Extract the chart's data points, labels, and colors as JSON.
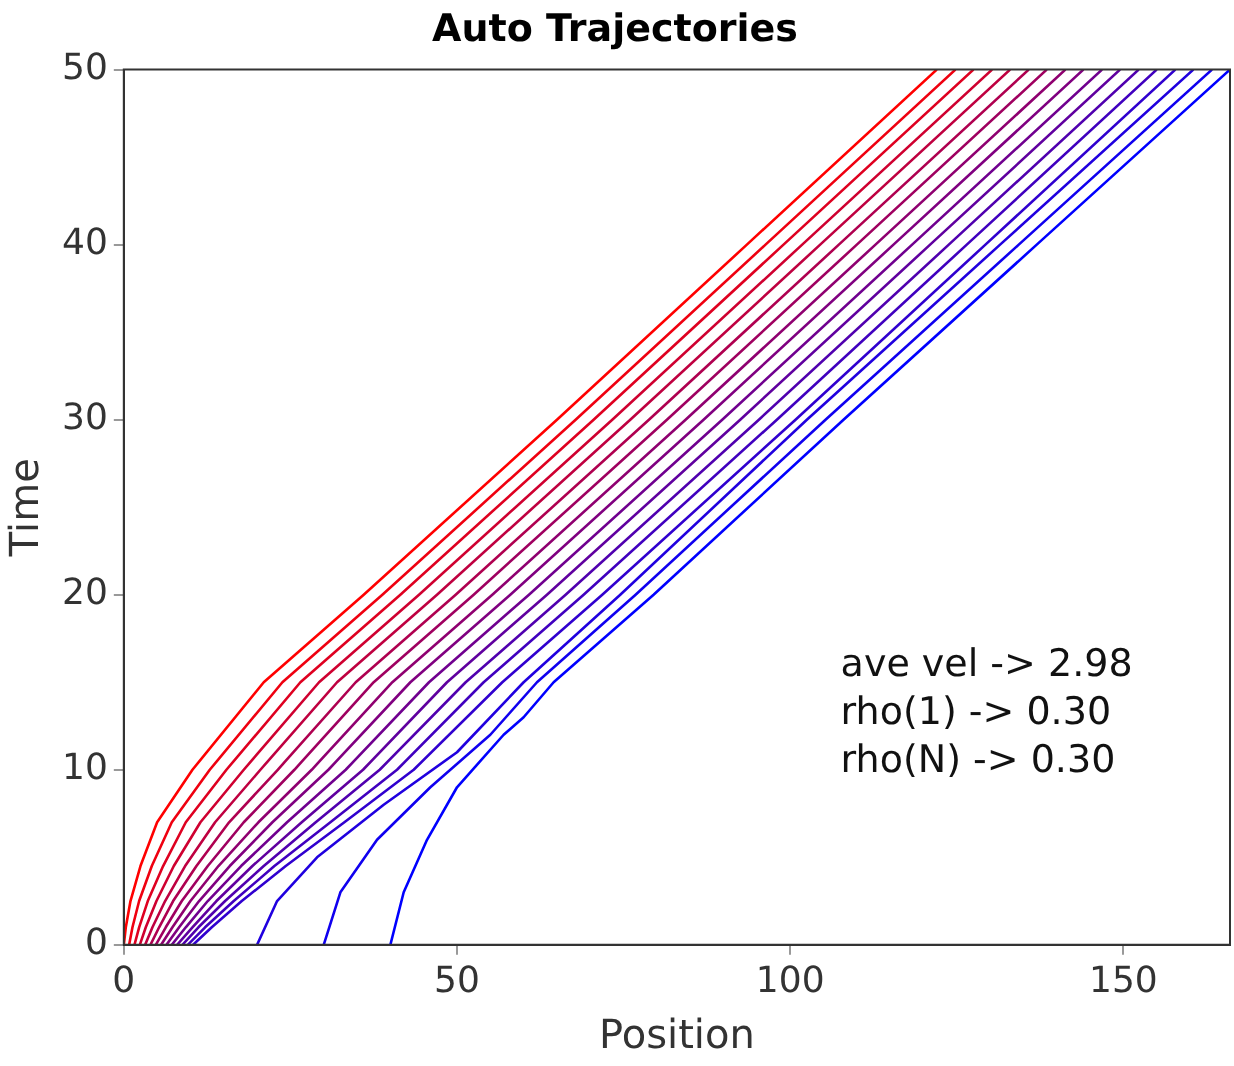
{
  "chart_data": {
    "type": "line",
    "title": "Auto Trajectories",
    "xlabel": "Position",
    "ylabel": "Time",
    "xlim": [
      0,
      166
    ],
    "ylim": [
      0,
      50
    ],
    "xticks": [
      0,
      50,
      100,
      150
    ],
    "yticks": [
      0,
      10,
      20,
      30,
      40,
      50
    ],
    "grid": false,
    "legend": false,
    "marker": "none",
    "line_style": "solid",
    "annotations": [
      "ave vel -> 2.98",
      "rho(1) -> 0.30",
      "rho(N) -> 0.30"
    ],
    "series": [
      {
        "color": "#ff0000",
        "x": [
          0,
          0.3,
          1,
          2.5,
          5,
          10.3,
          21,
          36,
          65,
          93.5,
          122
        ],
        "values": [
          0,
          1,
          2.5,
          4.5,
          7,
          10,
          15,
          20,
          30,
          40,
          50
        ]
      },
      {
        "color": "#ef0010",
        "x": [
          0.8,
          1.3,
          2.3,
          4.2,
          7.2,
          12.9,
          23.8,
          38.8,
          67.8,
          96.3,
          124.8
        ],
        "values": [
          0,
          1,
          2.5,
          4.5,
          7,
          10,
          15,
          20,
          30,
          40,
          50
        ]
      },
      {
        "color": "#df0020",
        "x": [
          1.6,
          2.3,
          3.6,
          5.9,
          9.3,
          15.4,
          26.5,
          41.5,
          70.5,
          99,
          127.5
        ],
        "values": [
          0,
          1,
          2.5,
          4.5,
          7,
          10,
          15,
          20,
          30,
          40,
          50
        ]
      },
      {
        "color": "#cf0030",
        "x": [
          2.4,
          3.3,
          4.9,
          7.5,
          11.5,
          18,
          29.3,
          44.3,
          73.3,
          101.8,
          130.3
        ],
        "values": [
          0,
          1,
          2.5,
          4.5,
          7,
          10,
          15,
          20,
          30,
          40,
          50
        ]
      },
      {
        "color": "#bf0040",
        "x": [
          3.2,
          4.3,
          6.2,
          9.2,
          13.7,
          20.5,
          32,
          47,
          76,
          104.5,
          133
        ],
        "values": [
          0,
          1,
          2.5,
          4.5,
          7,
          10,
          15,
          20,
          30,
          40,
          50
        ]
      },
      {
        "color": "#af0050",
        "x": [
          4,
          5.3,
          7.4,
          10.9,
          15.8,
          23.1,
          34.8,
          49.8,
          78.8,
          107.3,
          135.8
        ],
        "values": [
          0,
          1,
          2.5,
          4.5,
          7,
          10,
          15,
          20,
          30,
          40,
          50
        ]
      },
      {
        "color": "#9f0060",
        "x": [
          4.8,
          6.3,
          8.7,
          12.6,
          18,
          25.6,
          37.5,
          52.5,
          81.5,
          110,
          138.5
        ],
        "values": [
          0,
          1,
          2.5,
          4.5,
          7,
          10,
          15,
          20,
          30,
          40,
          50
        ]
      },
      {
        "color": "#8f0070",
        "x": [
          5.6,
          7.3,
          10,
          14.2,
          20.2,
          28.2,
          40.3,
          55.3,
          84.3,
          112.8,
          141.3
        ],
        "values": [
          0,
          1,
          2.5,
          4.5,
          7,
          10,
          15,
          20,
          30,
          40,
          50
        ]
      },
      {
        "color": "#800080",
        "x": [
          6.4,
          8.3,
          11.3,
          15.9,
          22.3,
          30.7,
          43,
          58,
          87,
          115.5,
          144
        ],
        "values": [
          0,
          1,
          2.5,
          4.5,
          7,
          10,
          15,
          20,
          30,
          40,
          50
        ]
      },
      {
        "color": "#70008f",
        "x": [
          7.2,
          9.3,
          12.6,
          17.6,
          24.5,
          33.3,
          45.8,
          60.8,
          89.8,
          118.3,
          146.8
        ],
        "values": [
          0,
          1,
          2.5,
          4.5,
          7,
          10,
          15,
          20,
          30,
          40,
          50
        ]
      },
      {
        "color": "#60009f",
        "x": [
          8,
          10.3,
          13.9,
          19.3,
          26.7,
          35.9,
          48.5,
          63.5,
          92.5,
          121,
          149.5
        ],
        "values": [
          0,
          1,
          2.5,
          4.5,
          7,
          10,
          15,
          20,
          30,
          40,
          50
        ]
      },
      {
        "color": "#5000af",
        "x": [
          8.8,
          11.2,
          15.2,
          21,
          28.8,
          38.4,
          51.3,
          66.3,
          95.3,
          123.8,
          152.3
        ],
        "values": [
          0,
          1,
          2.5,
          4.5,
          7,
          10,
          15,
          20,
          30,
          40,
          50
        ]
      },
      {
        "color": "#4000bf",
        "x": [
          9.6,
          12.2,
          16.5,
          22.6,
          31,
          41,
          54,
          69,
          98,
          126.5,
          155
        ],
        "values": [
          0,
          1,
          2.5,
          4.5,
          7,
          10,
          15,
          20,
          30,
          40,
          50
        ]
      },
      {
        "color": "#3000cf",
        "x": [
          10.4,
          13.2,
          17.7,
          24.3,
          33.1,
          43.5,
          56.8,
          71.8,
          100.8,
          129.3,
          157.8
        ],
        "values": [
          0,
          1,
          2.5,
          4.5,
          7,
          10,
          15,
          20,
          30,
          40,
          50
        ]
      },
      {
        "color": "#2000df",
        "x": [
          20,
          23,
          29,
          39,
          50,
          60,
          74.5,
          102.5,
          131.5,
          160.5
        ],
        "values": [
          0,
          2.5,
          5,
          8,
          11,
          15,
          20,
          30,
          40,
          50
        ]
      },
      {
        "color": "#1000ef",
        "x": [
          30,
          32.5,
          38,
          46,
          55,
          62,
          76.8,
          105.3,
          134.3,
          163.3
        ],
        "values": [
          0,
          3,
          6,
          9,
          12,
          15,
          20,
          30,
          40,
          50
        ]
      },
      {
        "color": "#0000ff",
        "x": [
          40,
          42,
          45.5,
          50,
          57,
          60,
          64.5,
          79.5,
          108,
          137,
          166
        ],
        "values": [
          0,
          3,
          6,
          9,
          12,
          13,
          15,
          20,
          30,
          40,
          50
        ]
      }
    ]
  }
}
